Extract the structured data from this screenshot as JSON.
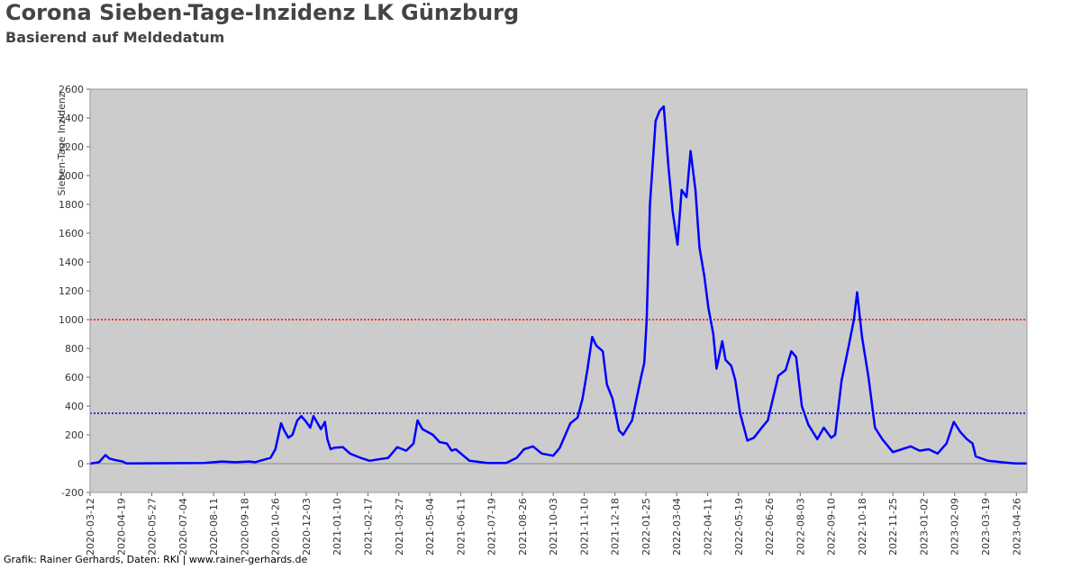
{
  "chart_data": {
    "type": "line",
    "title": "Corona Sieben-Tage-Inzidenz LK Günzburg",
    "subtitle": "Basierend auf Meldedatum",
    "y_label": "Sieben-Tage Inzidenz",
    "footer": "Grafik: Rainer Gerhards, Daten: RKI | www.rainer-gerhards.de",
    "xlim": [
      "2020-03-12",
      "2023-05-09"
    ],
    "ylim": [
      -200,
      2600
    ],
    "yticks": [
      -200,
      0,
      200,
      400,
      600,
      800,
      1000,
      1200,
      1400,
      1600,
      1800,
      2000,
      2200,
      2400,
      2600
    ],
    "xticks": [
      "2020-03-12",
      "2020-04-19",
      "2020-05-27",
      "2020-07-04",
      "2020-08-11",
      "2020-09-18",
      "2020-10-26",
      "2020-12-03",
      "2021-01-10",
      "2021-02-17",
      "2021-03-27",
      "2021-05-04",
      "2021-06-11",
      "2021-07-19",
      "2021-08-26",
      "2021-10-03",
      "2021-11-10",
      "2021-12-18",
      "2022-01-25",
      "2022-03-04",
      "2022-04-11",
      "2022-05-19",
      "2022-06-26",
      "2022-08-03",
      "2022-09-10",
      "2022-10-18",
      "2022-11-25",
      "2023-01-02",
      "2023-02-09",
      "2023-03-19",
      "2023-04-26"
    ],
    "reference_lines": [
      {
        "value": 1000,
        "color": "#ff0000"
      },
      {
        "value": 350,
        "color": "#0000cc"
      }
    ],
    "plot_background": "#cccccc",
    "series": [
      {
        "name": "Sieben-Tage Inzidenz",
        "color": "#0000ff",
        "x": [
          "2020-03-12",
          "2020-03-23",
          "2020-03-31",
          "2020-04-05",
          "2020-04-12",
          "2020-04-21",
          "2020-04-26",
          "2020-07-30",
          "2020-08-21",
          "2020-09-07",
          "2020-09-24",
          "2020-10-01",
          "2020-10-20",
          "2020-10-26",
          "2020-11-02",
          "2020-11-06",
          "2020-11-11",
          "2020-11-16",
          "2020-11-22",
          "2020-11-27",
          "2020-12-03",
          "2020-12-08",
          "2020-12-12",
          "2020-12-17",
          "2020-12-21",
          "2020-12-26",
          "2020-12-29",
          "2021-01-02",
          "2021-01-06",
          "2021-01-17",
          "2021-01-26",
          "2021-02-08",
          "2021-02-19",
          "2021-03-02",
          "2021-03-14",
          "2021-03-25",
          "2021-04-05",
          "2021-04-14",
          "2021-04-19",
          "2021-04-25",
          "2021-05-08",
          "2021-05-16",
          "2021-05-25",
          "2021-05-31",
          "2021-06-05",
          "2021-06-22",
          "2021-07-14",
          "2021-08-06",
          "2021-08-19",
          "2021-08-28",
          "2021-09-08",
          "2021-09-19",
          "2021-10-03",
          "2021-10-11",
          "2021-10-24",
          "2021-11-02",
          "2021-11-08",
          "2021-11-14",
          "2021-11-20",
          "2021-11-25",
          "2021-12-03",
          "2021-12-08",
          "2021-12-15",
          "2021-12-23",
          "2021-12-28",
          "2022-01-08",
          "2022-01-19",
          "2022-01-23",
          "2022-01-26",
          "2022-01-30",
          "2022-02-06",
          "2022-02-11",
          "2022-02-16",
          "2022-02-22",
          "2022-02-27",
          "2022-03-05",
          "2022-03-10",
          "2022-03-16",
          "2022-03-21",
          "2022-03-27",
          "2022-04-01",
          "2022-04-07",
          "2022-04-12",
          "2022-04-18",
          "2022-04-22",
          "2022-04-29",
          "2022-05-03",
          "2022-05-10",
          "2022-05-15",
          "2022-05-21",
          "2022-05-30",
          "2022-06-07",
          "2022-06-18",
          "2022-06-24",
          "2022-06-29",
          "2022-07-07",
          "2022-07-16",
          "2022-07-23",
          "2022-07-29",
          "2022-08-05",
          "2022-08-13",
          "2022-08-24",
          "2022-09-01",
          "2022-09-10",
          "2022-09-15",
          "2022-09-23",
          "2022-10-01",
          "2022-10-08",
          "2022-10-12",
          "2022-10-18",
          "2022-10-26",
          "2022-11-03",
          "2022-11-12",
          "2022-11-25",
          "2022-12-06",
          "2022-12-17",
          "2022-12-28",
          "2023-01-08",
          "2023-01-19",
          "2023-01-30",
          "2023-02-08",
          "2023-02-16",
          "2023-02-24",
          "2023-03-03",
          "2023-03-07",
          "2023-03-22",
          "2023-04-08",
          "2023-04-24",
          "2023-05-09"
        ],
        "values": [
          0,
          10,
          60,
          35,
          25,
          15,
          2,
          5,
          15,
          10,
          15,
          10,
          40,
          100,
          280,
          230,
          180,
          200,
          300,
          330,
          290,
          250,
          330,
          280,
          240,
          290,
          170,
          100,
          110,
          115,
          70,
          40,
          20,
          30,
          40,
          115,
          90,
          140,
          300,
          240,
          200,
          150,
          140,
          90,
          100,
          20,
          5,
          5,
          40,
          100,
          120,
          70,
          55,
          110,
          280,
          320,
          450,
          650,
          880,
          820,
          780,
          550,
          450,
          230,
          200,
          300,
          600,
          700,
          1000,
          1800,
          2380,
          2450,
          2480,
          2050,
          1750,
          1520,
          1900,
          1850,
          2170,
          1900,
          1500,
          1300,
          1080,
          900,
          660,
          850,
          720,
          680,
          580,
          350,
          160,
          180,
          260,
          300,
          420,
          610,
          650,
          780,
          740,
          400,
          270,
          170,
          250,
          180,
          200,
          580,
          800,
          1000,
          1190,
          880,
          600,
          250,
          170,
          80,
          100,
          120,
          90,
          100,
          70,
          140,
          290,
          220,
          170,
          140,
          50,
          20,
          10,
          2,
          2
        ]
      }
    ]
  }
}
